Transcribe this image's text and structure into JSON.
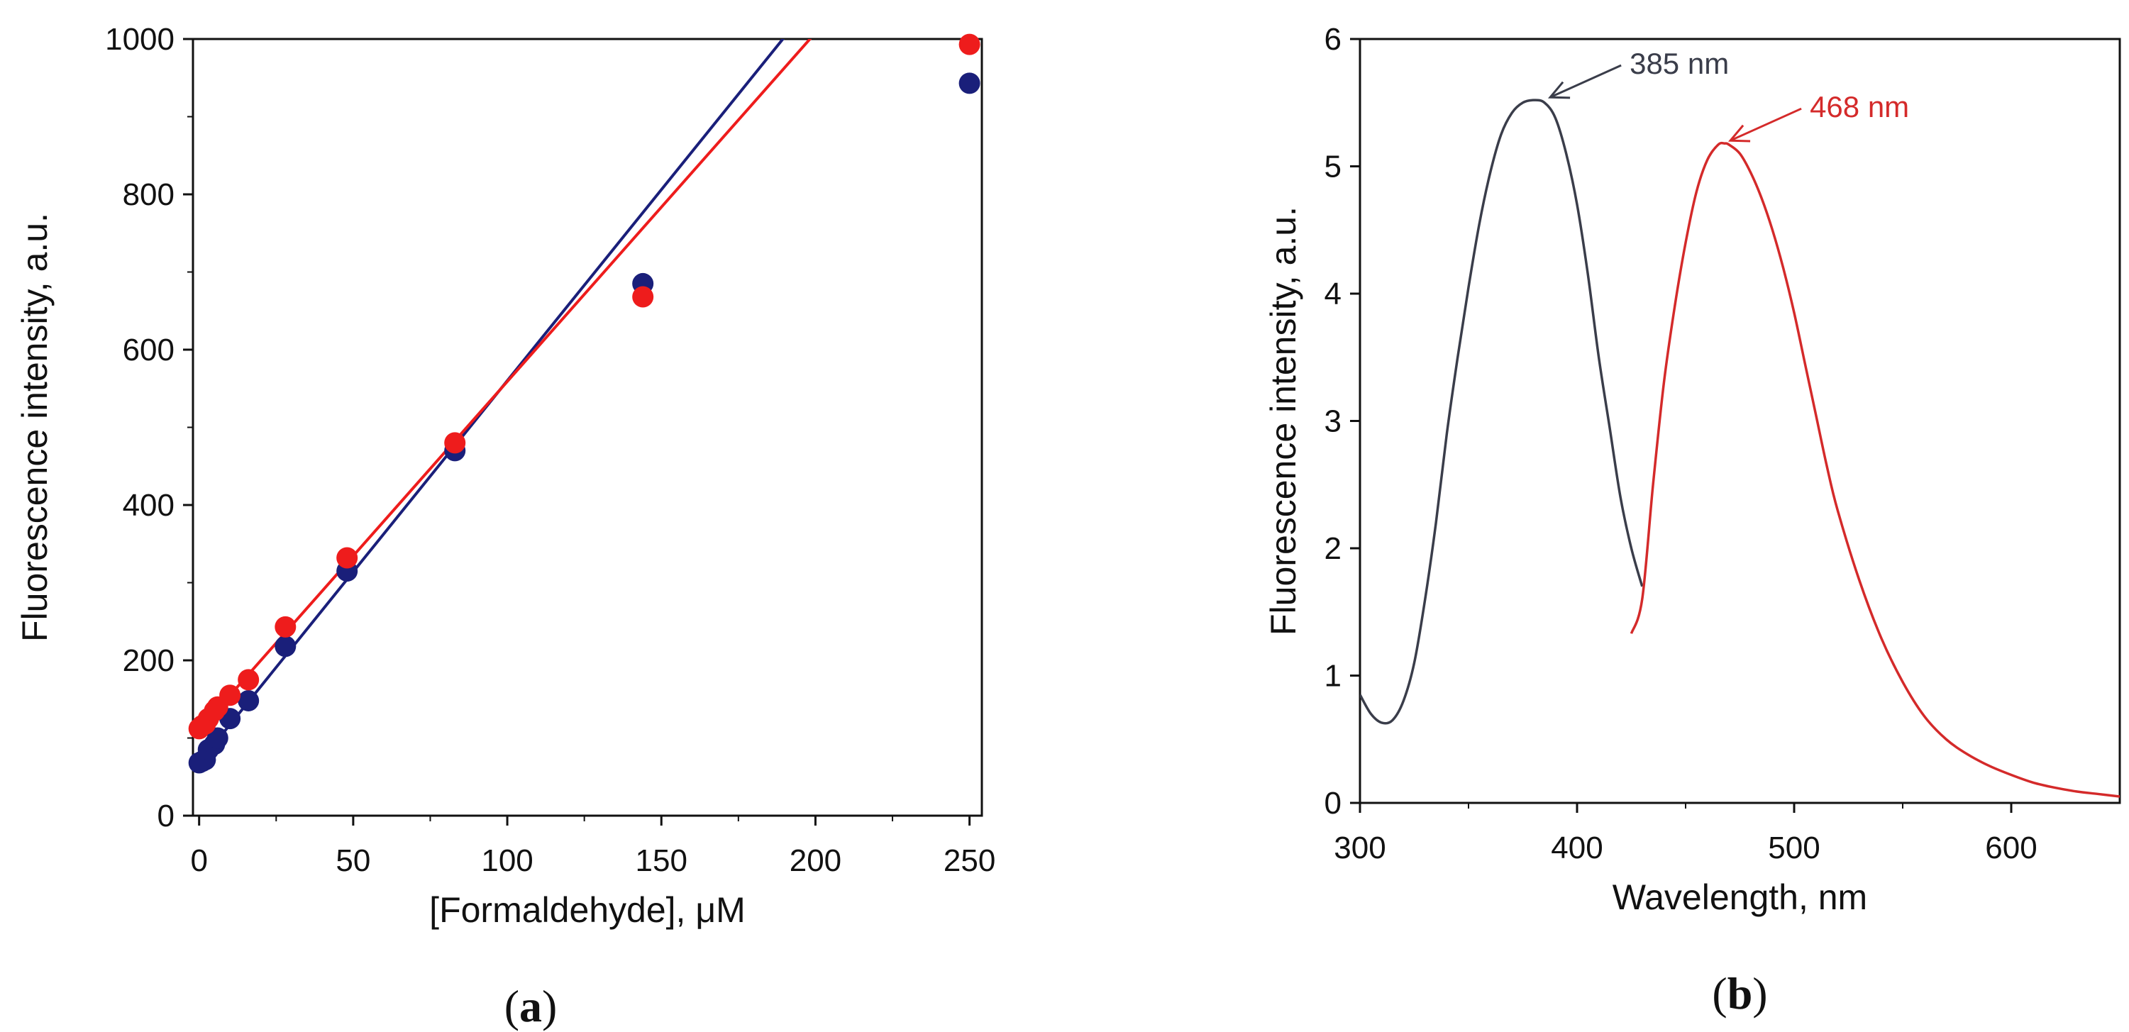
{
  "chart_data": [
    {
      "panel_label": "(a)",
      "panel_label_letter": "a",
      "type": "scatter",
      "xlabel": "[Formaldehyde], μM",
      "ylabel": "Fluorescence intensity, a.u.",
      "xlim": [
        -2,
        254
      ],
      "ylim": [
        0,
        1000
      ],
      "xticks": [
        0,
        50,
        100,
        150,
        200,
        250
      ],
      "yticks": [
        0,
        200,
        400,
        600,
        800,
        1000
      ],
      "grid": false,
      "series": [
        {
          "color": "#1a1f7a",
          "points": [
            [
              0,
              68
            ],
            [
              1,
              70
            ],
            [
              2,
              72
            ],
            [
              3,
              85
            ],
            [
              5,
              92
            ],
            [
              6,
              100
            ],
            [
              10,
              125
            ],
            [
              16,
              148
            ],
            [
              28,
              218
            ],
            [
              48,
              315
            ],
            [
              83,
              470
            ],
            [
              144,
              685
            ],
            [
              250,
              943
            ]
          ],
          "fit_line": {
            "slope": 4.92,
            "intercept": 68
          }
        },
        {
          "color": "#ee1c1c",
          "points": [
            [
              0,
              112
            ],
            [
              1,
              116
            ],
            [
              2,
              118
            ],
            [
              3,
              125
            ],
            [
              5,
              135
            ],
            [
              6,
              140
            ],
            [
              10,
              155
            ],
            [
              16,
              175
            ],
            [
              28,
              243
            ],
            [
              48,
              332
            ],
            [
              83,
              480
            ],
            [
              144,
              668
            ],
            [
              250,
              993
            ]
          ],
          "fit_line": {
            "slope": 4.49,
            "intercept": 110
          }
        }
      ]
    },
    {
      "panel_label": "(b)",
      "panel_label_letter": "b",
      "type": "line",
      "xlabel": "Wavelength, nm",
      "ylabel": "Fluorescence intensity, a.u.",
      "xlim": [
        300,
        650
      ],
      "ylim": [
        0,
        6
      ],
      "xticks": [
        300,
        400,
        500,
        600
      ],
      "yticks": [
        0,
        1,
        2,
        3,
        4,
        5,
        6
      ],
      "grid": false,
      "series": [
        {
          "color": "#3a3d4a",
          "x": [
            300,
            305,
            310,
            315,
            320,
            325,
            330,
            335,
            340,
            345,
            350,
            355,
            360,
            365,
            370,
            375,
            380,
            385,
            390,
            395,
            400,
            405,
            410,
            415,
            420,
            425,
            430
          ],
          "y": [
            0.85,
            0.7,
            0.63,
            0.65,
            0.8,
            1.1,
            1.6,
            2.2,
            2.9,
            3.5,
            4.05,
            4.55,
            4.95,
            5.25,
            5.42,
            5.5,
            5.52,
            5.5,
            5.38,
            5.1,
            4.7,
            4.15,
            3.5,
            2.95,
            2.4,
            2.0,
            1.7
          ]
        },
        {
          "color": "#d42a2a",
          "x": [
            425,
            430,
            435,
            440,
            445,
            450,
            455,
            460,
            465,
            468,
            470,
            475,
            480,
            485,
            490,
            495,
            500,
            505,
            510,
            515,
            520,
            530,
            540,
            550,
            560,
            570,
            580,
            590,
            600,
            610,
            620,
            630,
            640,
            650
          ],
          "y": [
            1.33,
            1.6,
            2.5,
            3.3,
            3.9,
            4.4,
            4.8,
            5.05,
            5.17,
            5.18,
            5.17,
            5.1,
            4.95,
            4.75,
            4.5,
            4.2,
            3.85,
            3.45,
            3.05,
            2.65,
            2.3,
            1.75,
            1.3,
            0.95,
            0.68,
            0.5,
            0.38,
            0.29,
            0.22,
            0.16,
            0.12,
            0.09,
            0.07,
            0.05
          ]
        }
      ],
      "annotations": [
        {
          "text": "385 nm",
          "color": "#3a3d4a",
          "target": [
            385,
            5.52
          ]
        },
        {
          "text": "468 nm",
          "color": "#d42a2a",
          "target": [
            468,
            5.18
          ]
        }
      ]
    }
  ]
}
